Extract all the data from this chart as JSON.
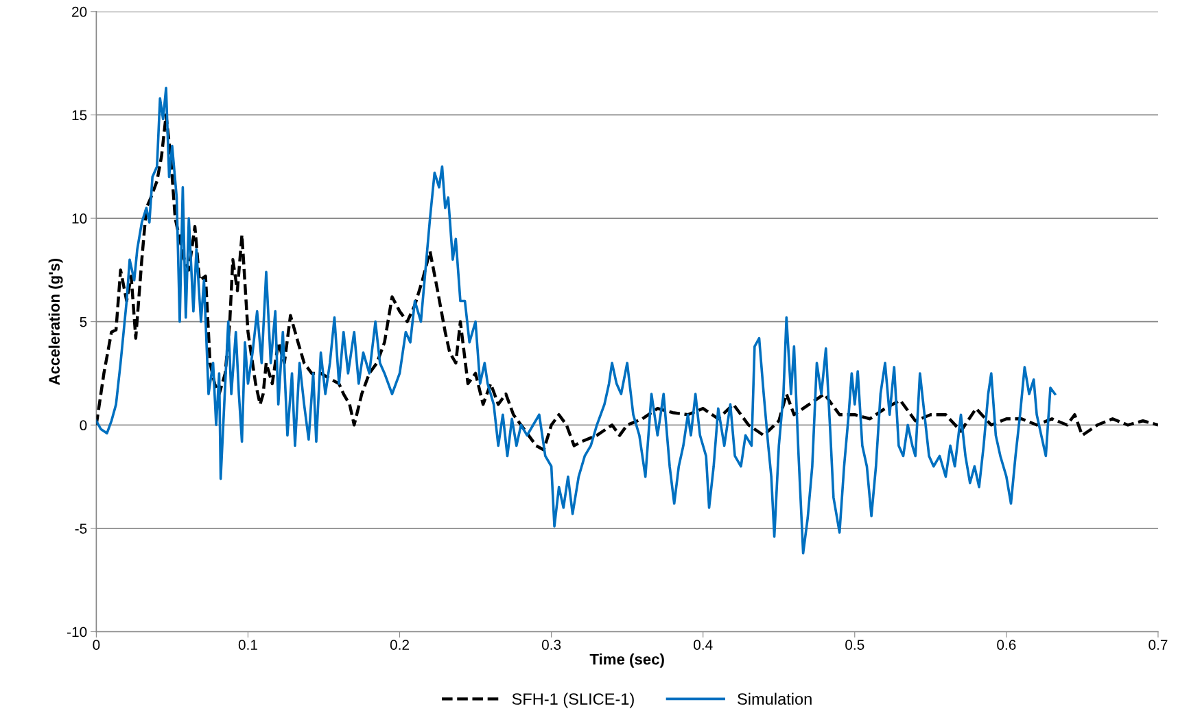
{
  "chart_data": {
    "type": "line",
    "xlabel": "Time (sec)",
    "ylabel": "Acceleration (g's)",
    "xlim": [
      0,
      0.7
    ],
    "xticks": [
      0,
      0.1,
      0.2,
      0.3,
      0.4,
      0.5,
      0.6,
      0.7
    ],
    "ylim": [
      -10,
      20
    ],
    "yticks": [
      -10,
      -5,
      0,
      5,
      10,
      15,
      20
    ],
    "grid": "y",
    "legend": "bottom",
    "marker": "none",
    "series": [
      {
        "name": "SFH-1 (SLICE-1)",
        "color": "#000000",
        "line_style": "dashed",
        "x": [
          0,
          0.005,
          0.01,
          0.013,
          0.016,
          0.02,
          0.023,
          0.026,
          0.03,
          0.033,
          0.036,
          0.04,
          0.043,
          0.046,
          0.049,
          0.052,
          0.055,
          0.058,
          0.061,
          0.065,
          0.068,
          0.072,
          0.075,
          0.078,
          0.081,
          0.085,
          0.088,
          0.09,
          0.093,
          0.096,
          0.1,
          0.105,
          0.108,
          0.11,
          0.112,
          0.116,
          0.12,
          0.124,
          0.128,
          0.133,
          0.137,
          0.142,
          0.148,
          0.155,
          0.16,
          0.163,
          0.167,
          0.17,
          0.175,
          0.18,
          0.185,
          0.19,
          0.195,
          0.2,
          0.205,
          0.21,
          0.215,
          0.22,
          0.225,
          0.23,
          0.233,
          0.237,
          0.24,
          0.245,
          0.25,
          0.255,
          0.26,
          0.265,
          0.27,
          0.275,
          0.28,
          0.285,
          0.29,
          0.295,
          0.3,
          0.305,
          0.31,
          0.315,
          0.32,
          0.33,
          0.34,
          0.345,
          0.35,
          0.36,
          0.37,
          0.38,
          0.39,
          0.4,
          0.41,
          0.42,
          0.43,
          0.44,
          0.45,
          0.455,
          0.46,
          0.47,
          0.48,
          0.49,
          0.5,
          0.51,
          0.52,
          0.53,
          0.54,
          0.55,
          0.56,
          0.57,
          0.58,
          0.59,
          0.6,
          0.61,
          0.62,
          0.63,
          0.64,
          0.645,
          0.65,
          0.66,
          0.67,
          0.68,
          0.69,
          0.7
        ],
        "values": [
          0,
          2.5,
          4.5,
          4.6,
          7.5,
          6,
          7.2,
          4.2,
          8,
          10.5,
          11,
          11.8,
          13,
          15,
          13,
          10,
          9,
          8,
          7.5,
          9.6,
          7,
          7.2,
          3,
          2,
          1.5,
          2.5,
          5,
          8,
          6.5,
          9.2,
          4.5,
          2,
          1,
          1.5,
          3,
          2,
          4,
          3,
          5.3,
          4,
          3,
          2.5,
          2.5,
          2.2,
          2,
          1.5,
          1,
          0,
          1.5,
          2.5,
          3,
          4,
          6.2,
          5.5,
          5,
          5.8,
          7,
          8.4,
          6.5,
          4.5,
          3.5,
          3,
          5,
          2,
          2.5,
          1,
          2,
          1,
          1.5,
          0.5,
          0,
          -0.5,
          -1,
          -1.2,
          0,
          0.5,
          0,
          -1,
          -0.8,
          -0.5,
          0,
          -0.5,
          0,
          0.3,
          0.8,
          0.6,
          0.5,
          0.8,
          0.3,
          1,
          0,
          -0.5,
          0.2,
          1.5,
          0.5,
          1,
          1.5,
          0.5,
          0.5,
          0.3,
          0.8,
          1.2,
          0.2,
          0.5,
          0.5,
          -0.3,
          0.8,
          0,
          0.3,
          0.3,
          0,
          0.3,
          0,
          0.5,
          -0.5,
          0,
          0.3,
          0,
          0.2,
          0
        ]
      },
      {
        "name": "Simulation",
        "color": "#0070c0",
        "line_style": "solid",
        "x": [
          0,
          0.003,
          0.007,
          0.01,
          0.013,
          0.016,
          0.02,
          0.022,
          0.025,
          0.027,
          0.03,
          0.033,
          0.035,
          0.037,
          0.04,
          0.042,
          0.044,
          0.046,
          0.048,
          0.05,
          0.053,
          0.055,
          0.057,
          0.059,
          0.061,
          0.064,
          0.066,
          0.069,
          0.071,
          0.074,
          0.077,
          0.079,
          0.081,
          0.082,
          0.085,
          0.087,
          0.089,
          0.092,
          0.094,
          0.096,
          0.098,
          0.1,
          0.103,
          0.106,
          0.109,
          0.112,
          0.115,
          0.118,
          0.12,
          0.123,
          0.126,
          0.129,
          0.131,
          0.134,
          0.137,
          0.14,
          0.143,
          0.145,
          0.148,
          0.151,
          0.154,
          0.157,
          0.16,
          0.163,
          0.166,
          0.17,
          0.173,
          0.176,
          0.18,
          0.184,
          0.187,
          0.19,
          0.195,
          0.2,
          0.204,
          0.207,
          0.21,
          0.214,
          0.217,
          0.22,
          0.223,
          0.226,
          0.228,
          0.23,
          0.232,
          0.235,
          0.237,
          0.24,
          0.243,
          0.246,
          0.25,
          0.253,
          0.256,
          0.258,
          0.262,
          0.265,
          0.268,
          0.271,
          0.274,
          0.277,
          0.28,
          0.284,
          0.288,
          0.292,
          0.296,
          0.3,
          0.302,
          0.305,
          0.308,
          0.311,
          0.314,
          0.318,
          0.322,
          0.326,
          0.33,
          0.335,
          0.338,
          0.34,
          0.343,
          0.346,
          0.35,
          0.354,
          0.358,
          0.362,
          0.366,
          0.37,
          0.374,
          0.378,
          0.381,
          0.384,
          0.387,
          0.39,
          0.392,
          0.395,
          0.398,
          0.402,
          0.404,
          0.407,
          0.41,
          0.414,
          0.418,
          0.421,
          0.425,
          0.428,
          0.432,
          0.434,
          0.437,
          0.44,
          0.443,
          0.445,
          0.447,
          0.45,
          0.453,
          0.455,
          0.458,
          0.46,
          0.463,
          0.466,
          0.469,
          0.472,
          0.475,
          0.478,
          0.481,
          0.484,
          0.486,
          0.49,
          0.493,
          0.496,
          0.498,
          0.5,
          0.502,
          0.505,
          0.508,
          0.511,
          0.514,
          0.517,
          0.52,
          0.523,
          0.526,
          0.529,
          0.532,
          0.535,
          0.538,
          0.54,
          0.543,
          0.546,
          0.549,
          0.552,
          0.556,
          0.56,
          0.563,
          0.566,
          0.57,
          0.573,
          0.576,
          0.579,
          0.582,
          0.585,
          0.588,
          0.59,
          0.593,
          0.596,
          0.6,
          0.603,
          0.606,
          0.609,
          0.612,
          0.615,
          0.618,
          0.62,
          0.623,
          0.626,
          0.629,
          0.632
        ],
        "values": [
          0.2,
          -0.2,
          -0.4,
          0.2,
          1,
          3,
          6,
          8,
          7,
          8.5,
          9.8,
          10.5,
          9.8,
          12,
          12.5,
          15.8,
          14.8,
          16.3,
          12,
          13.5,
          11,
          5,
          11.5,
          5.2,
          10,
          5.5,
          8.5,
          5,
          7,
          1.5,
          3,
          0,
          2.5,
          -2.6,
          2,
          5,
          1.5,
          4.5,
          1.5,
          -0.8,
          4,
          2,
          3.5,
          5.5,
          3,
          7.4,
          3,
          5.5,
          1,
          4.5,
          -0.5,
          2.5,
          -1,
          3,
          1,
          -0.7,
          2.5,
          -0.8,
          3.5,
          1.5,
          3,
          5.2,
          2,
          4.5,
          2.5,
          4.5,
          2,
          3.5,
          2.5,
          5,
          3,
          2.5,
          1.5,
          2.5,
          4.5,
          4,
          6,
          5,
          7.5,
          10,
          12.2,
          11.5,
          12.5,
          10.5,
          11,
          8,
          9,
          6,
          6,
          4,
          5,
          2,
          3,
          2,
          1,
          -1,
          0.5,
          -1.5,
          0.3,
          -1,
          0,
          -0.5,
          0,
          0.5,
          -1.5,
          -2,
          -4.9,
          -3,
          -4,
          -2.5,
          -4.3,
          -2.5,
          -1.5,
          -1,
          0,
          1,
          2,
          3,
          2,
          1.5,
          3,
          0.5,
          -0.5,
          -2.5,
          1.5,
          -0.5,
          1.5,
          -2,
          -3.8,
          -2,
          -1,
          0.5,
          -0.5,
          1.5,
          -0.5,
          -1.5,
          -4,
          -2,
          0.8,
          -1,
          1,
          -1.5,
          -2,
          -0.5,
          -1,
          3.8,
          4.2,
          1.5,
          -1,
          -2.5,
          -5.4,
          -1,
          1.5,
          5.2,
          1.5,
          3.8,
          -1.5,
          -6.2,
          -4.5,
          -2,
          3,
          1.5,
          3.7,
          -0.5,
          -3.5,
          -5.2,
          -2,
          0.5,
          2.5,
          1,
          2.6,
          -1,
          -2,
          -4.4,
          -2,
          1.5,
          3,
          0.5,
          2.8,
          -1,
          -1.5,
          0,
          -1,
          -1.5,
          2.5,
          0.5,
          -1.5,
          -2,
          -1.5,
          -2.5,
          -1,
          -2,
          0.5,
          -1.5,
          -2.8,
          -2,
          -3,
          -1,
          1.5,
          2.5,
          -0.5,
          -1.5,
          -2.5,
          -3.8,
          -1.5,
          0.5,
          2.8,
          1.5,
          2.2,
          0.5,
          -0.5,
          -1.5,
          1.8,
          1.5
        ]
      }
    ]
  }
}
